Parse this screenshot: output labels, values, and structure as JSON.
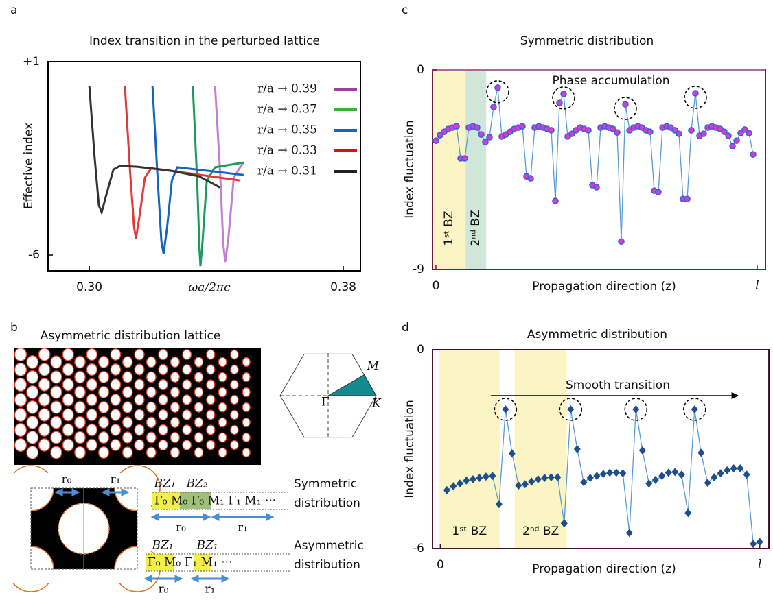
{
  "chart_data": [
    {
      "panel": "a",
      "type": "line",
      "title": "Index transition in the perturbed lattice",
      "x_label": "ωa/2πc",
      "y_label": "Effective index",
      "xlim": [
        0.287,
        0.3854
      ],
      "xticks": [
        {
          "value": 0.3,
          "label": "0.30"
        },
        0.38
      ],
      "ylim": [
        -6.57,
        1
      ],
      "yticks": [
        {
          "value": 1,
          "label": "+1"
        },
        -6
      ],
      "frame_color": "#000000",
      "legend": "upper right",
      "series": [
        {
          "name": "r/a → 0.39",
          "color": "#c47fd6",
          "legend_color": "#a0409c",
          "x": [
            0.3396,
            0.3412,
            0.3422,
            0.3428,
            0.3438,
            0.3455,
            0.3476,
            0.3486
          ],
          "values": [
            0.13,
            -3.0,
            -5.6,
            -6.25,
            -5.4,
            -3.2,
            -2.8,
            -2.65
          ]
        },
        {
          "name": "r/a → 0.37",
          "color": "#1e9a5a",
          "legend_color": "#3cae3c",
          "x": [
            0.3326,
            0.334,
            0.3347,
            0.335,
            0.3356,
            0.337,
            0.3396,
            0.3486
          ],
          "values": [
            0.13,
            -3.4,
            -5.8,
            -6.4,
            -5.6,
            -3.3,
            -2.82,
            -2.65
          ]
        },
        {
          "name": "r/a → 0.35",
          "color": "#1565c0",
          "legend_color": "#1565c0",
          "x": [
            0.3199,
            0.3215,
            0.3227,
            0.3234,
            0.3245,
            0.326,
            0.3277,
            0.3486
          ],
          "values": [
            0.13,
            -3.2,
            -5.5,
            -5.95,
            -5.0,
            -3.3,
            -2.82,
            -3.1
          ]
        },
        {
          "name": "r/a → 0.33",
          "color": "#e03a3a",
          "legend_color": "#e01010",
          "x": [
            0.3112,
            0.3128,
            0.3141,
            0.3147,
            0.3158,
            0.3175,
            0.3195,
            0.3476
          ],
          "values": [
            0.13,
            -2.9,
            -5.0,
            -5.4,
            -4.6,
            -3.2,
            -2.85,
            -3.3
          ]
        },
        {
          "name": "r/a → 0.31",
          "color": "#333333",
          "legend_color": "#222222",
          "x": [
            0.3,
            0.3017,
            0.303,
            0.3039,
            0.3054,
            0.3076,
            0.3097,
            0.3151,
            0.3259,
            0.3346,
            0.3411
          ],
          "values": [
            0.13,
            -2.5,
            -4.2,
            -4.45,
            -3.8,
            -2.9,
            -2.77,
            -2.8,
            -2.95,
            -3.15,
            -3.55
          ]
        }
      ]
    },
    {
      "panel": "c",
      "type": "line",
      "title": "Symmetric distribution",
      "x_label": "Propagation direction (z)",
      "y_label": "Index fluctuation",
      "xlim": [
        -0.83,
        80
      ],
      "xticks": [
        {
          "value": 0,
          "label": "0"
        },
        {
          "value": 78,
          "label": "l"
        }
      ],
      "ylim": [
        -9,
        0
      ],
      "yticks": [
        0,
        -9
      ],
      "frame_color": "#6b1f3a",
      "top_line_color": "#a86a9a",
      "annotation": "Phase accumulation",
      "bands": [
        {
          "label": "1ˢᵗ BZ",
          "x0": -0.83,
          "x1": 7.2,
          "color": "#fbf5c6"
        },
        {
          "label": "2ⁿᵈ BZ",
          "x0": 7.2,
          "x1": 12.2,
          "color": "#cfe6d8"
        }
      ],
      "band_label_rotated": true,
      "highlight": [
        15,
        31,
        46,
        63
      ],
      "series": [
        {
          "color": "#5b9bd5",
          "marker": "circle",
          "marker_color": "#d040c8",
          "marker_edge": "#3a5ee0",
          "values": [
            -3.19,
            -2.94,
            -2.79,
            -2.66,
            -2.6,
            -2.54,
            -3.99,
            -3.99,
            -2.6,
            -2.54,
            -2.6,
            -2.91,
            -3.25,
            -3.03,
            -1.67,
            -0.8,
            -3.0,
            -2.91,
            -2.79,
            -2.66,
            -2.6,
            -2.54,
            -4.8,
            -4.89,
            -2.6,
            -2.54,
            -2.6,
            -2.66,
            -2.72,
            -5.91,
            -1.49,
            -1.08,
            -3.0,
            -2.88,
            -2.72,
            -2.6,
            -2.66,
            -2.72,
            -5.2,
            -5.29,
            -2.6,
            -2.54,
            -2.6,
            -2.66,
            -2.82,
            -7.74,
            -1.55,
            -2.72,
            -2.6,
            -2.54,
            -2.6,
            -2.72,
            -2.79,
            -5.45,
            -5.51,
            -2.6,
            -2.54,
            -2.6,
            -2.72,
            -2.88,
            -5.82,
            -5.82,
            -2.72,
            -1.05,
            -2.97,
            -2.88,
            -2.6,
            -2.54,
            -2.6,
            -2.66,
            -2.79,
            -2.97,
            -3.44,
            -3.19,
            -2.85,
            -2.69,
            -2.85,
            -3.81
          ]
        }
      ]
    },
    {
      "panel": "d",
      "type": "line",
      "title": "Asymmetric distribution",
      "x_label": "Propagation direction (z)",
      "y_label": "Index fluctuation",
      "xlim": [
        -2.2,
        49.4
      ],
      "xticks": [
        {
          "value": -1,
          "label": "0"
        },
        {
          "value": 48,
          "label": "l"
        }
      ],
      "ylim": [
        -6,
        0
      ],
      "yticks": [
        0,
        -6
      ],
      "frame_color": "#4a1030",
      "annotation": "Smooth transition",
      "bands": [
        {
          "label": "1ˢᵗ BZ",
          "x0": -1.2,
          "x1": 8.1,
          "color": "#fbf5c6"
        },
        {
          "label": "2ⁿᵈ BZ",
          "x0": 10.4,
          "x1": 18.4,
          "color": "#fbf5c6"
        }
      ],
      "band_label_rotated": false,
      "highlight": [
        9,
        19,
        29,
        38
      ],
      "series": [
        {
          "color": "#5b9bd5",
          "marker": "diamond",
          "marker_color": "#1f4e8c",
          "marker_edge": "#1f4e8c",
          "values": [
            -4.24,
            -4.12,
            -4.04,
            -3.95,
            -3.91,
            -3.87,
            -3.83,
            -3.81,
            -4.66,
            -1.8,
            -3.13,
            -4.1,
            -4.06,
            -3.98,
            -3.91,
            -3.87,
            -3.85,
            -3.85,
            -5.24,
            -1.8,
            -3.0,
            -4.0,
            -3.87,
            -3.81,
            -3.75,
            -3.71,
            -3.71,
            -3.73,
            -5.53,
            -1.8,
            -3.04,
            -4.04,
            -3.93,
            -3.81,
            -3.71,
            -3.69,
            -3.77,
            -4.93,
            -1.8,
            -3.11,
            -4.02,
            -3.85,
            -3.73,
            -3.64,
            -3.58,
            -3.58,
            -3.77,
            -5.86,
            -5.8
          ]
        }
      ]
    }
  ],
  "panel_b": {
    "panel": "b",
    "title": "Asymmetric distribution lattice",
    "zone_points": {
      "M": "M",
      "Gamma": "Γ",
      "K": "K"
    },
    "unit_cell": {
      "r0": "r₀",
      "r1": "r₁"
    },
    "symmetric": {
      "label": [
        "Symmetric",
        "distribution"
      ],
      "zones": [
        "BZ₁",
        "BZ₂"
      ],
      "points": "Γ₀ M₀ Γ₀ M₁ Γ₁ M₁ ···",
      "radii": [
        "r₀",
        "r₁"
      ]
    },
    "asymmetric": {
      "label": [
        "Asymmetric",
        "distribution"
      ],
      "zones": [
        "BZ₁",
        "BZ₁"
      ],
      "points": "Γ₀ M₀  Γ₁ M₁ ···",
      "radii": [
        "r₀",
        "r₁"
      ]
    }
  }
}
